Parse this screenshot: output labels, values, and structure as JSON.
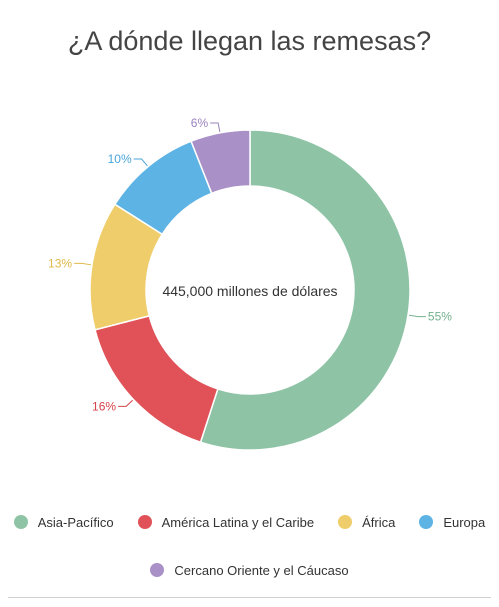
{
  "title": "¿A dónde llegan las remesas?",
  "center_label": "445,000 millones de dólares",
  "chart_data": {
    "type": "pie",
    "title": "¿A dónde llegan las remesas?",
    "center_label": "445,000 millones de dólares",
    "categories": [
      "Asia-Pacífico",
      "América Latina y el Caribe",
      "África",
      "Europa",
      "Cercano Oriente y el Cáucaso"
    ],
    "values": [
      55,
      16,
      13,
      10,
      6
    ],
    "labels": [
      "55%",
      "16%",
      "13%",
      "10%",
      "6%"
    ],
    "colors": [
      "#8ec4a5",
      "#e05257",
      "#f0cd6b",
      "#5cb3e4",
      "#a991c8"
    ],
    "label_colors": [
      "#72b08c",
      "#d6434a",
      "#e0b94a",
      "#4aa6da",
      "#9b82be"
    ],
    "legend": "bottom"
  }
}
